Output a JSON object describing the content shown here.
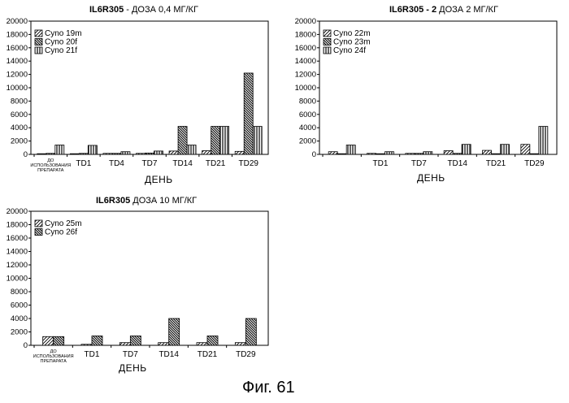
{
  "figure_caption": "Фиг. 61",
  "panels": [
    {
      "title_bold": "IL6R305",
      "title_rest": " -  ДОЗА 0,4 МГ/КГ",
      "xlabel": "ДЕНЬ"
    },
    {
      "title_bold": "IL6R305  - 2",
      "title_rest": " ДОЗА 2 МГ/КГ",
      "xlabel": "ДЕНЬ"
    },
    {
      "title_bold": "IL6R305",
      "title_rest": " ДОЗА 10 МГ/КГ",
      "xlabel": "ДЕНЬ"
    }
  ],
  "chart_data": [
    {
      "type": "bar",
      "title": "IL6R305  -  ДОЗА 0,4 МГ/КГ",
      "xlabel": "ДЕНЬ",
      "ylabel": "",
      "ylim": [
        0,
        20000
      ],
      "yticks": [
        "0",
        "2000",
        "4000",
        "6000",
        "8000",
        "10000",
        "12000",
        "14000",
        "16000",
        "18000",
        "20000"
      ],
      "categories": [
        "ДО ИСПОЛЬЗОВАНИЯ ПРЕПАРАТА",
        "TD1",
        "TD4",
        "TD7",
        "TD14",
        "TD21",
        "TD29"
      ],
      "legend_position": "top-left",
      "series": [
        {
          "name": "Cyno 19m",
          "values": [
            100,
            100,
            150,
            150,
            500,
            550,
            450
          ],
          "pattern": "diag-light"
        },
        {
          "name": "Cyno 20f",
          "values": [
            150,
            150,
            150,
            200,
            4200,
            4200,
            12200
          ],
          "pattern": "diag-dark"
        },
        {
          "name": "Cyno 21f",
          "values": [
            1400,
            1350,
            400,
            500,
            1400,
            4200,
            4200
          ],
          "pattern": "vertical"
        }
      ]
    },
    {
      "type": "bar",
      "title": "IL6R305  - 2 ДОЗА 2 МГ/КГ",
      "xlabel": "ДЕНЬ",
      "ylabel": "",
      "ylim": [
        0,
        20000
      ],
      "yticks": [
        "0",
        "2000",
        "4000",
        "6000",
        "8000",
        "10000",
        "12000",
        "14000",
        "16000",
        "18000",
        "20000"
      ],
      "categories": [
        "",
        "TD1",
        "TD7",
        "TD14",
        "TD21",
        "TD29"
      ],
      "legend_position": "top-left",
      "series": [
        {
          "name": "Cyno 22m",
          "values": [
            400,
            150,
            150,
            550,
            600,
            1500
          ],
          "pattern": "diag-light"
        },
        {
          "name": "Cyno 23m",
          "values": [
            100,
            100,
            150,
            150,
            100,
            100
          ],
          "pattern": "diag-dark"
        },
        {
          "name": "Cyno 24f",
          "values": [
            1400,
            400,
            400,
            1500,
            1500,
            4200
          ],
          "pattern": "vertical"
        }
      ]
    },
    {
      "type": "bar",
      "title": "IL6R305 ДОЗА 10 МГ/КГ",
      "xlabel": "ДЕНЬ",
      "ylabel": "",
      "ylim": [
        0,
        20000
      ],
      "yticks": [
        "0",
        "2000",
        "4000",
        "6000",
        "8000",
        "10000",
        "12000",
        "14000",
        "16000",
        "18000",
        "20000"
      ],
      "categories": [
        "ДО ИСПОЛЬЗОВАНИЯ ПРЕПАРАТА",
        "TD1",
        "TD7",
        "TD14",
        "TD21",
        "TD29"
      ],
      "legend_position": "top-left",
      "series": [
        {
          "name": "Cyno 25m",
          "values": [
            1300,
            150,
            400,
            400,
            400,
            400
          ],
          "pattern": "diag-light"
        },
        {
          "name": "Cyno 26f",
          "values": [
            1300,
            1400,
            1400,
            4000,
            1400,
            4000
          ],
          "pattern": "diag-dark"
        }
      ]
    }
  ]
}
